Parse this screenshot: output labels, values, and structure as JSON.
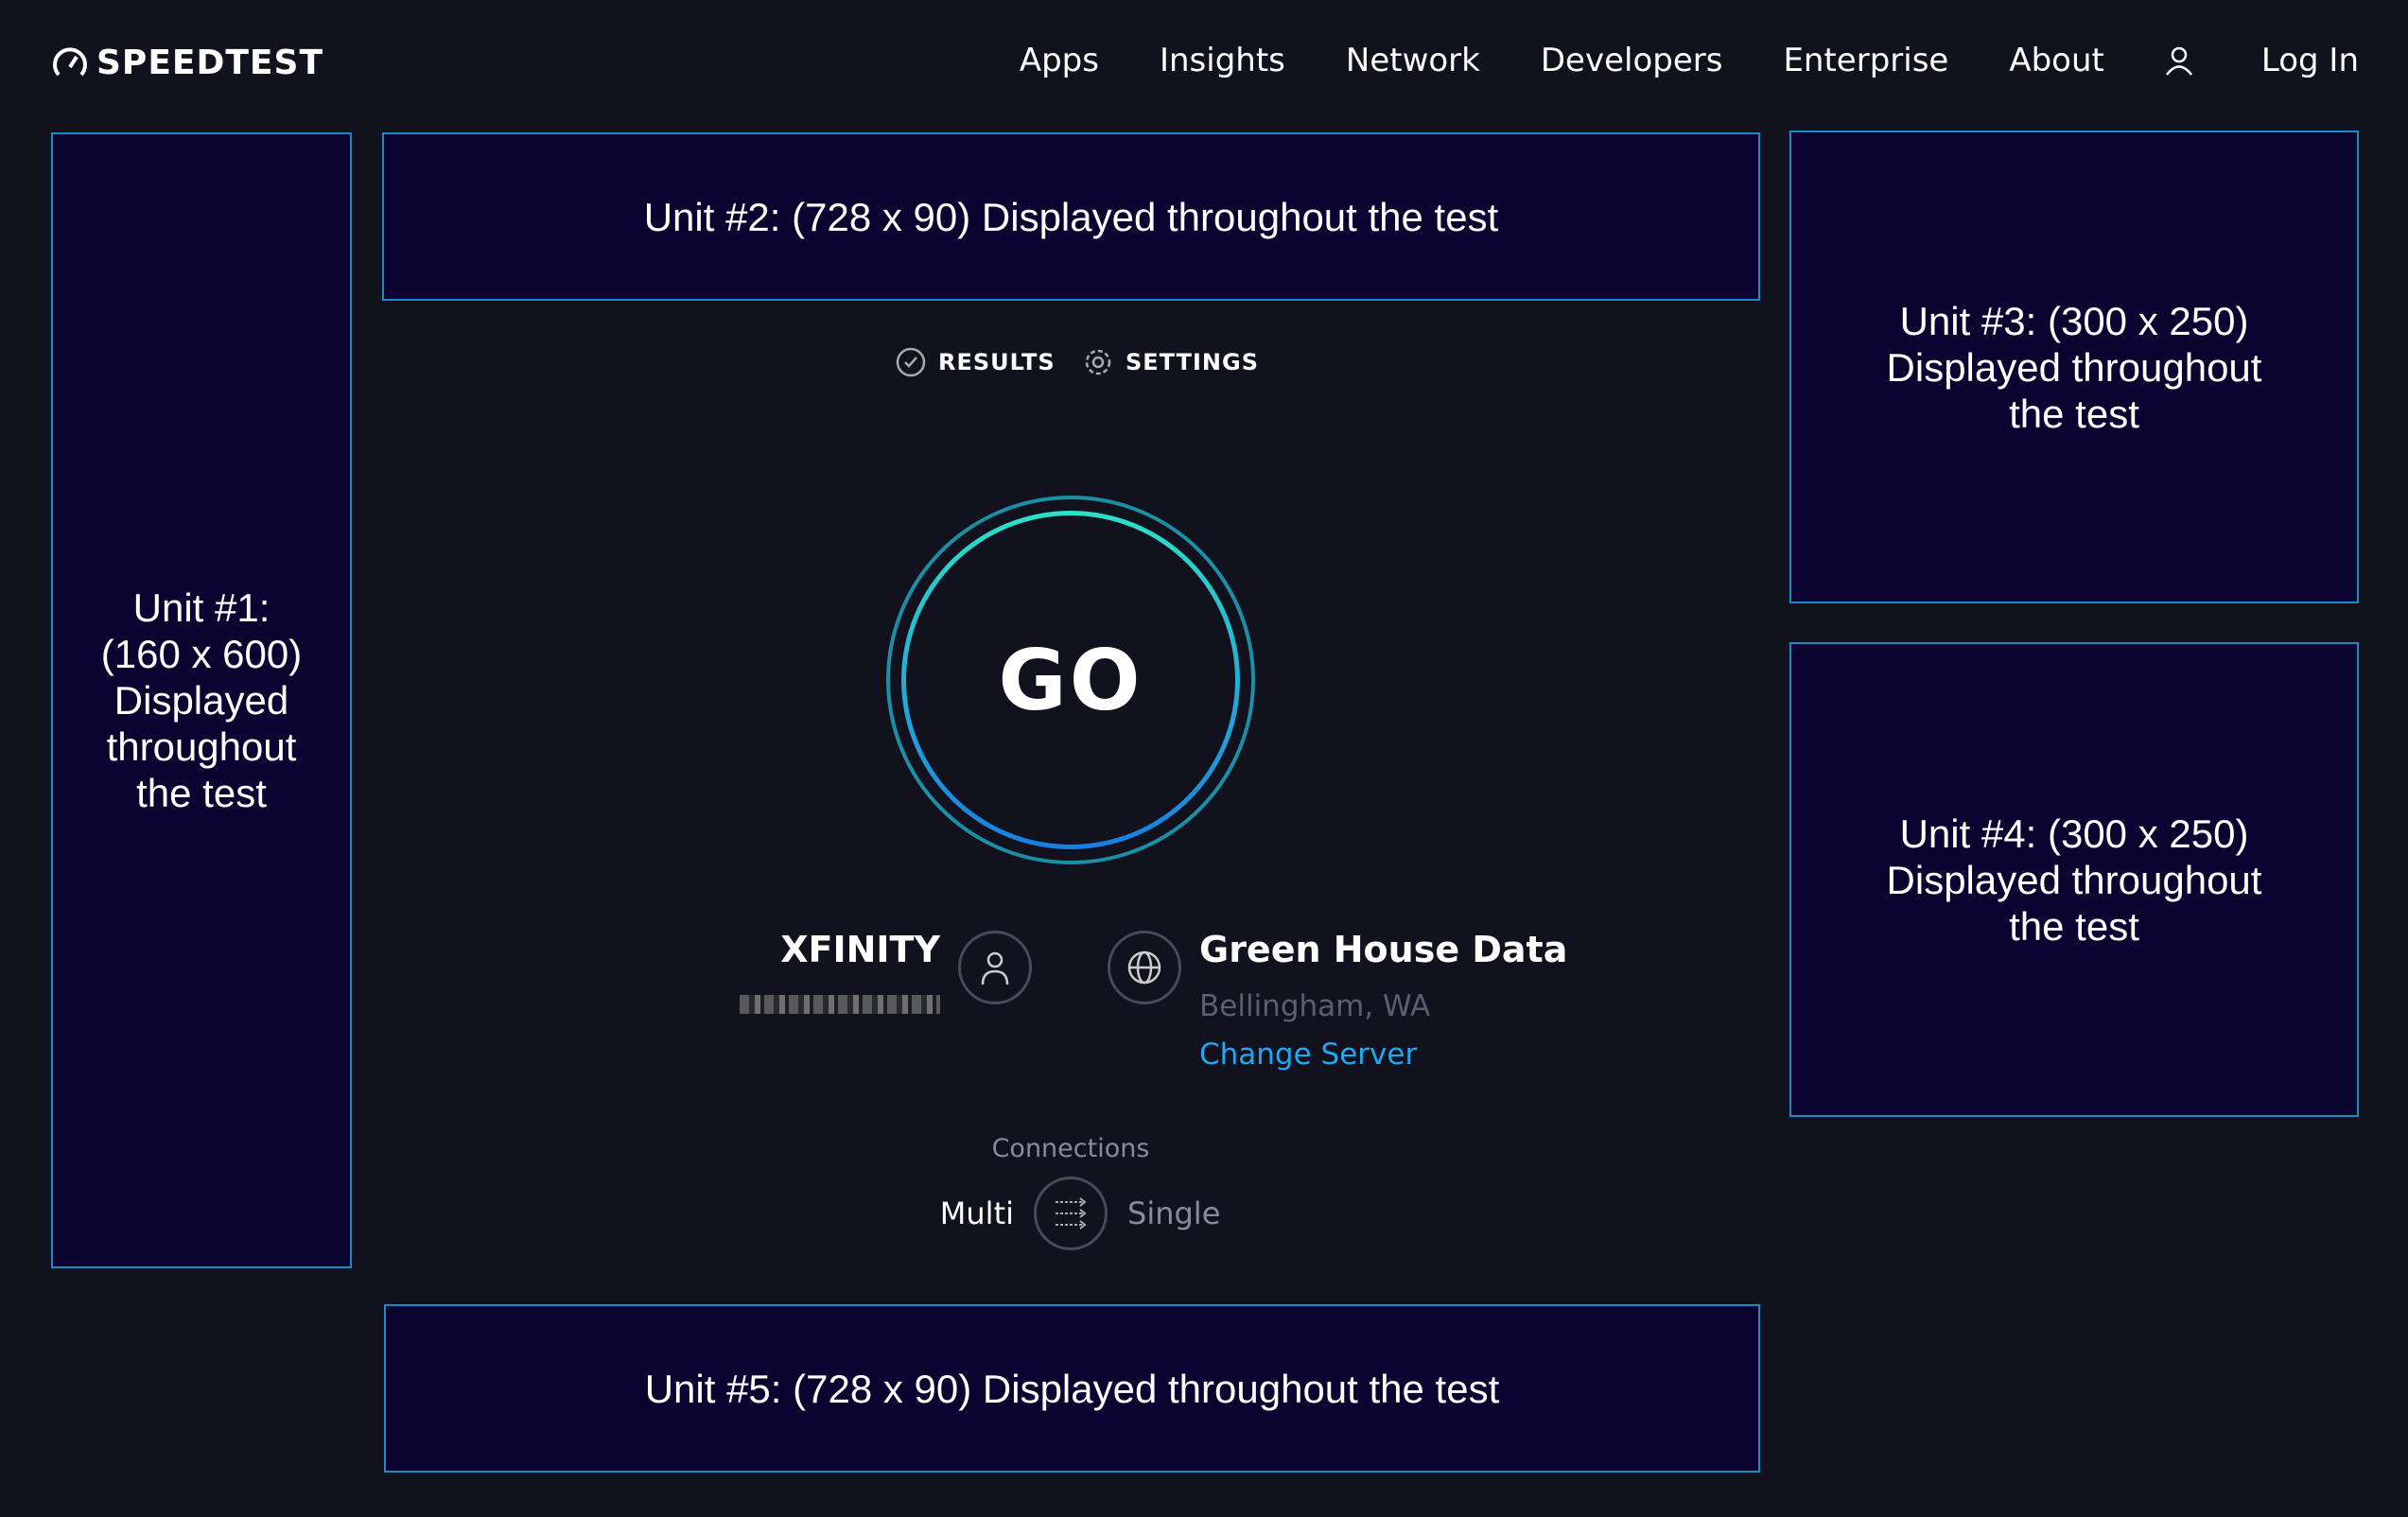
{
  "header": {
    "logo": "SPEEDTEST",
    "nav": [
      "Apps",
      "Insights",
      "Network",
      "Developers",
      "Enterprise",
      "About"
    ],
    "login": "Log In"
  },
  "ads": {
    "unit1": "Unit #1: (160 x 600) Displayed throughout the test",
    "unit2": "Unit #2: (728 x 90) Displayed throughout the test",
    "unit3": "Unit #3: (300 x 250) Displayed throughout the test",
    "unit4": "Unit #4: (300 x 250) Displayed throughout the test",
    "unit5": "Unit #5: (728 x 90) Displayed throughout the test"
  },
  "tabs": {
    "results": "RESULTS",
    "settings": "SETTINGS"
  },
  "go": "GO",
  "isp": {
    "name": "XFINITY"
  },
  "server": {
    "name": "Green House Data",
    "location": "Bellingham, WA",
    "change": "Change Server"
  },
  "connections": {
    "label": "Connections",
    "multi": "Multi",
    "single": "Single"
  },
  "colors": {
    "background": "#11121d",
    "ad_bg": "#0b0330",
    "ad_border": "#1a8ac8",
    "link": "#1fa8f0",
    "muted": "#5d5d70"
  }
}
